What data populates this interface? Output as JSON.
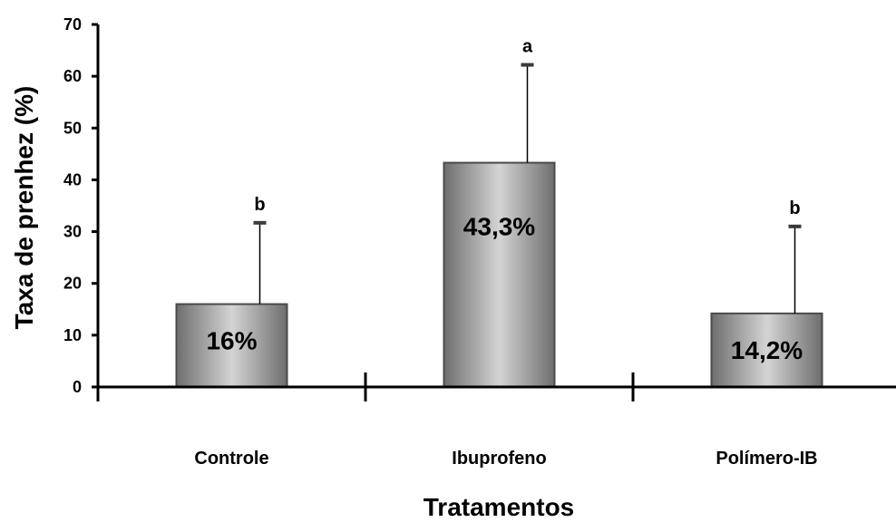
{
  "chart_data": {
    "type": "bar",
    "title": "",
    "xlabel": "Tratamentos",
    "ylabel": "Taxa de prenhez (%)",
    "ylim": [
      0,
      70
    ],
    "yticks": [
      "0",
      "10",
      "20",
      "30",
      "40",
      "50",
      "60",
      "70"
    ],
    "categories": [
      "Controle",
      "Ibuprofeno",
      "Polímero-IB"
    ],
    "values": [
      16,
      43.3,
      14.2
    ],
    "error_upper": [
      31.7,
      62.2,
      31.0
    ],
    "bar_labels": [
      "16%",
      "43,3%",
      "14,2%"
    ],
    "significance": [
      "b",
      "a",
      "b"
    ],
    "grid": false,
    "legend": "none",
    "colors": {
      "bar_edge": "#4a4a4a",
      "bar_dark": "#6e6e6e",
      "bar_light": "#d4d4d4",
      "axis": "#000000"
    }
  }
}
